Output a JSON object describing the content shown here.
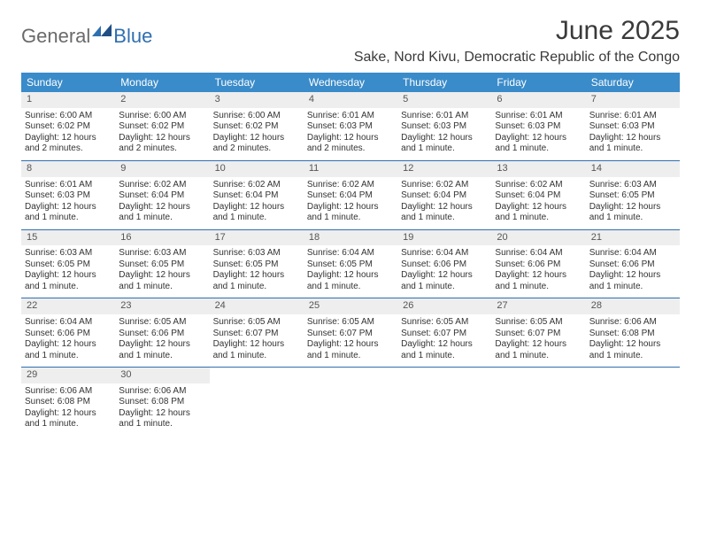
{
  "logo": {
    "word1": "General",
    "word2": "Blue"
  },
  "title": "June 2025",
  "location": "Sake, Nord Kivu, Democratic Republic of the Congo",
  "colors": {
    "header_bg": "#3a8bc9",
    "header_text": "#ffffff",
    "week_border": "#2f6fb0",
    "daynum_bg": "#eeeeee",
    "body_text": "#333333",
    "logo_gray": "#6a6a6a",
    "logo_blue": "#2f6fb0"
  },
  "days_of_week": [
    "Sunday",
    "Monday",
    "Tuesday",
    "Wednesday",
    "Thursday",
    "Friday",
    "Saturday"
  ],
  "weeks": [
    [
      {
        "n": "1",
        "sr": "Sunrise: 6:00 AM",
        "ss": "Sunset: 6:02 PM",
        "d1": "Daylight: 12 hours",
        "d2": "and 2 minutes."
      },
      {
        "n": "2",
        "sr": "Sunrise: 6:00 AM",
        "ss": "Sunset: 6:02 PM",
        "d1": "Daylight: 12 hours",
        "d2": "and 2 minutes."
      },
      {
        "n": "3",
        "sr": "Sunrise: 6:00 AM",
        "ss": "Sunset: 6:02 PM",
        "d1": "Daylight: 12 hours",
        "d2": "and 2 minutes."
      },
      {
        "n": "4",
        "sr": "Sunrise: 6:01 AM",
        "ss": "Sunset: 6:03 PM",
        "d1": "Daylight: 12 hours",
        "d2": "and 2 minutes."
      },
      {
        "n": "5",
        "sr": "Sunrise: 6:01 AM",
        "ss": "Sunset: 6:03 PM",
        "d1": "Daylight: 12 hours",
        "d2": "and 1 minute."
      },
      {
        "n": "6",
        "sr": "Sunrise: 6:01 AM",
        "ss": "Sunset: 6:03 PM",
        "d1": "Daylight: 12 hours",
        "d2": "and 1 minute."
      },
      {
        "n": "7",
        "sr": "Sunrise: 6:01 AM",
        "ss": "Sunset: 6:03 PM",
        "d1": "Daylight: 12 hours",
        "d2": "and 1 minute."
      }
    ],
    [
      {
        "n": "8",
        "sr": "Sunrise: 6:01 AM",
        "ss": "Sunset: 6:03 PM",
        "d1": "Daylight: 12 hours",
        "d2": "and 1 minute."
      },
      {
        "n": "9",
        "sr": "Sunrise: 6:02 AM",
        "ss": "Sunset: 6:04 PM",
        "d1": "Daylight: 12 hours",
        "d2": "and 1 minute."
      },
      {
        "n": "10",
        "sr": "Sunrise: 6:02 AM",
        "ss": "Sunset: 6:04 PM",
        "d1": "Daylight: 12 hours",
        "d2": "and 1 minute."
      },
      {
        "n": "11",
        "sr": "Sunrise: 6:02 AM",
        "ss": "Sunset: 6:04 PM",
        "d1": "Daylight: 12 hours",
        "d2": "and 1 minute."
      },
      {
        "n": "12",
        "sr": "Sunrise: 6:02 AM",
        "ss": "Sunset: 6:04 PM",
        "d1": "Daylight: 12 hours",
        "d2": "and 1 minute."
      },
      {
        "n": "13",
        "sr": "Sunrise: 6:02 AM",
        "ss": "Sunset: 6:04 PM",
        "d1": "Daylight: 12 hours",
        "d2": "and 1 minute."
      },
      {
        "n": "14",
        "sr": "Sunrise: 6:03 AM",
        "ss": "Sunset: 6:05 PM",
        "d1": "Daylight: 12 hours",
        "d2": "and 1 minute."
      }
    ],
    [
      {
        "n": "15",
        "sr": "Sunrise: 6:03 AM",
        "ss": "Sunset: 6:05 PM",
        "d1": "Daylight: 12 hours",
        "d2": "and 1 minute."
      },
      {
        "n": "16",
        "sr": "Sunrise: 6:03 AM",
        "ss": "Sunset: 6:05 PM",
        "d1": "Daylight: 12 hours",
        "d2": "and 1 minute."
      },
      {
        "n": "17",
        "sr": "Sunrise: 6:03 AM",
        "ss": "Sunset: 6:05 PM",
        "d1": "Daylight: 12 hours",
        "d2": "and 1 minute."
      },
      {
        "n": "18",
        "sr": "Sunrise: 6:04 AM",
        "ss": "Sunset: 6:05 PM",
        "d1": "Daylight: 12 hours",
        "d2": "and 1 minute."
      },
      {
        "n": "19",
        "sr": "Sunrise: 6:04 AM",
        "ss": "Sunset: 6:06 PM",
        "d1": "Daylight: 12 hours",
        "d2": "and 1 minute."
      },
      {
        "n": "20",
        "sr": "Sunrise: 6:04 AM",
        "ss": "Sunset: 6:06 PM",
        "d1": "Daylight: 12 hours",
        "d2": "and 1 minute."
      },
      {
        "n": "21",
        "sr": "Sunrise: 6:04 AM",
        "ss": "Sunset: 6:06 PM",
        "d1": "Daylight: 12 hours",
        "d2": "and 1 minute."
      }
    ],
    [
      {
        "n": "22",
        "sr": "Sunrise: 6:04 AM",
        "ss": "Sunset: 6:06 PM",
        "d1": "Daylight: 12 hours",
        "d2": "and 1 minute."
      },
      {
        "n": "23",
        "sr": "Sunrise: 6:05 AM",
        "ss": "Sunset: 6:06 PM",
        "d1": "Daylight: 12 hours",
        "d2": "and 1 minute."
      },
      {
        "n": "24",
        "sr": "Sunrise: 6:05 AM",
        "ss": "Sunset: 6:07 PM",
        "d1": "Daylight: 12 hours",
        "d2": "and 1 minute."
      },
      {
        "n": "25",
        "sr": "Sunrise: 6:05 AM",
        "ss": "Sunset: 6:07 PM",
        "d1": "Daylight: 12 hours",
        "d2": "and 1 minute."
      },
      {
        "n": "26",
        "sr": "Sunrise: 6:05 AM",
        "ss": "Sunset: 6:07 PM",
        "d1": "Daylight: 12 hours",
        "d2": "and 1 minute."
      },
      {
        "n": "27",
        "sr": "Sunrise: 6:05 AM",
        "ss": "Sunset: 6:07 PM",
        "d1": "Daylight: 12 hours",
        "d2": "and 1 minute."
      },
      {
        "n": "28",
        "sr": "Sunrise: 6:06 AM",
        "ss": "Sunset: 6:08 PM",
        "d1": "Daylight: 12 hours",
        "d2": "and 1 minute."
      }
    ],
    [
      {
        "n": "29",
        "sr": "Sunrise: 6:06 AM",
        "ss": "Sunset: 6:08 PM",
        "d1": "Daylight: 12 hours",
        "d2": "and 1 minute."
      },
      {
        "n": "30",
        "sr": "Sunrise: 6:06 AM",
        "ss": "Sunset: 6:08 PM",
        "d1": "Daylight: 12 hours",
        "d2": "and 1 minute."
      },
      null,
      null,
      null,
      null,
      null
    ]
  ]
}
